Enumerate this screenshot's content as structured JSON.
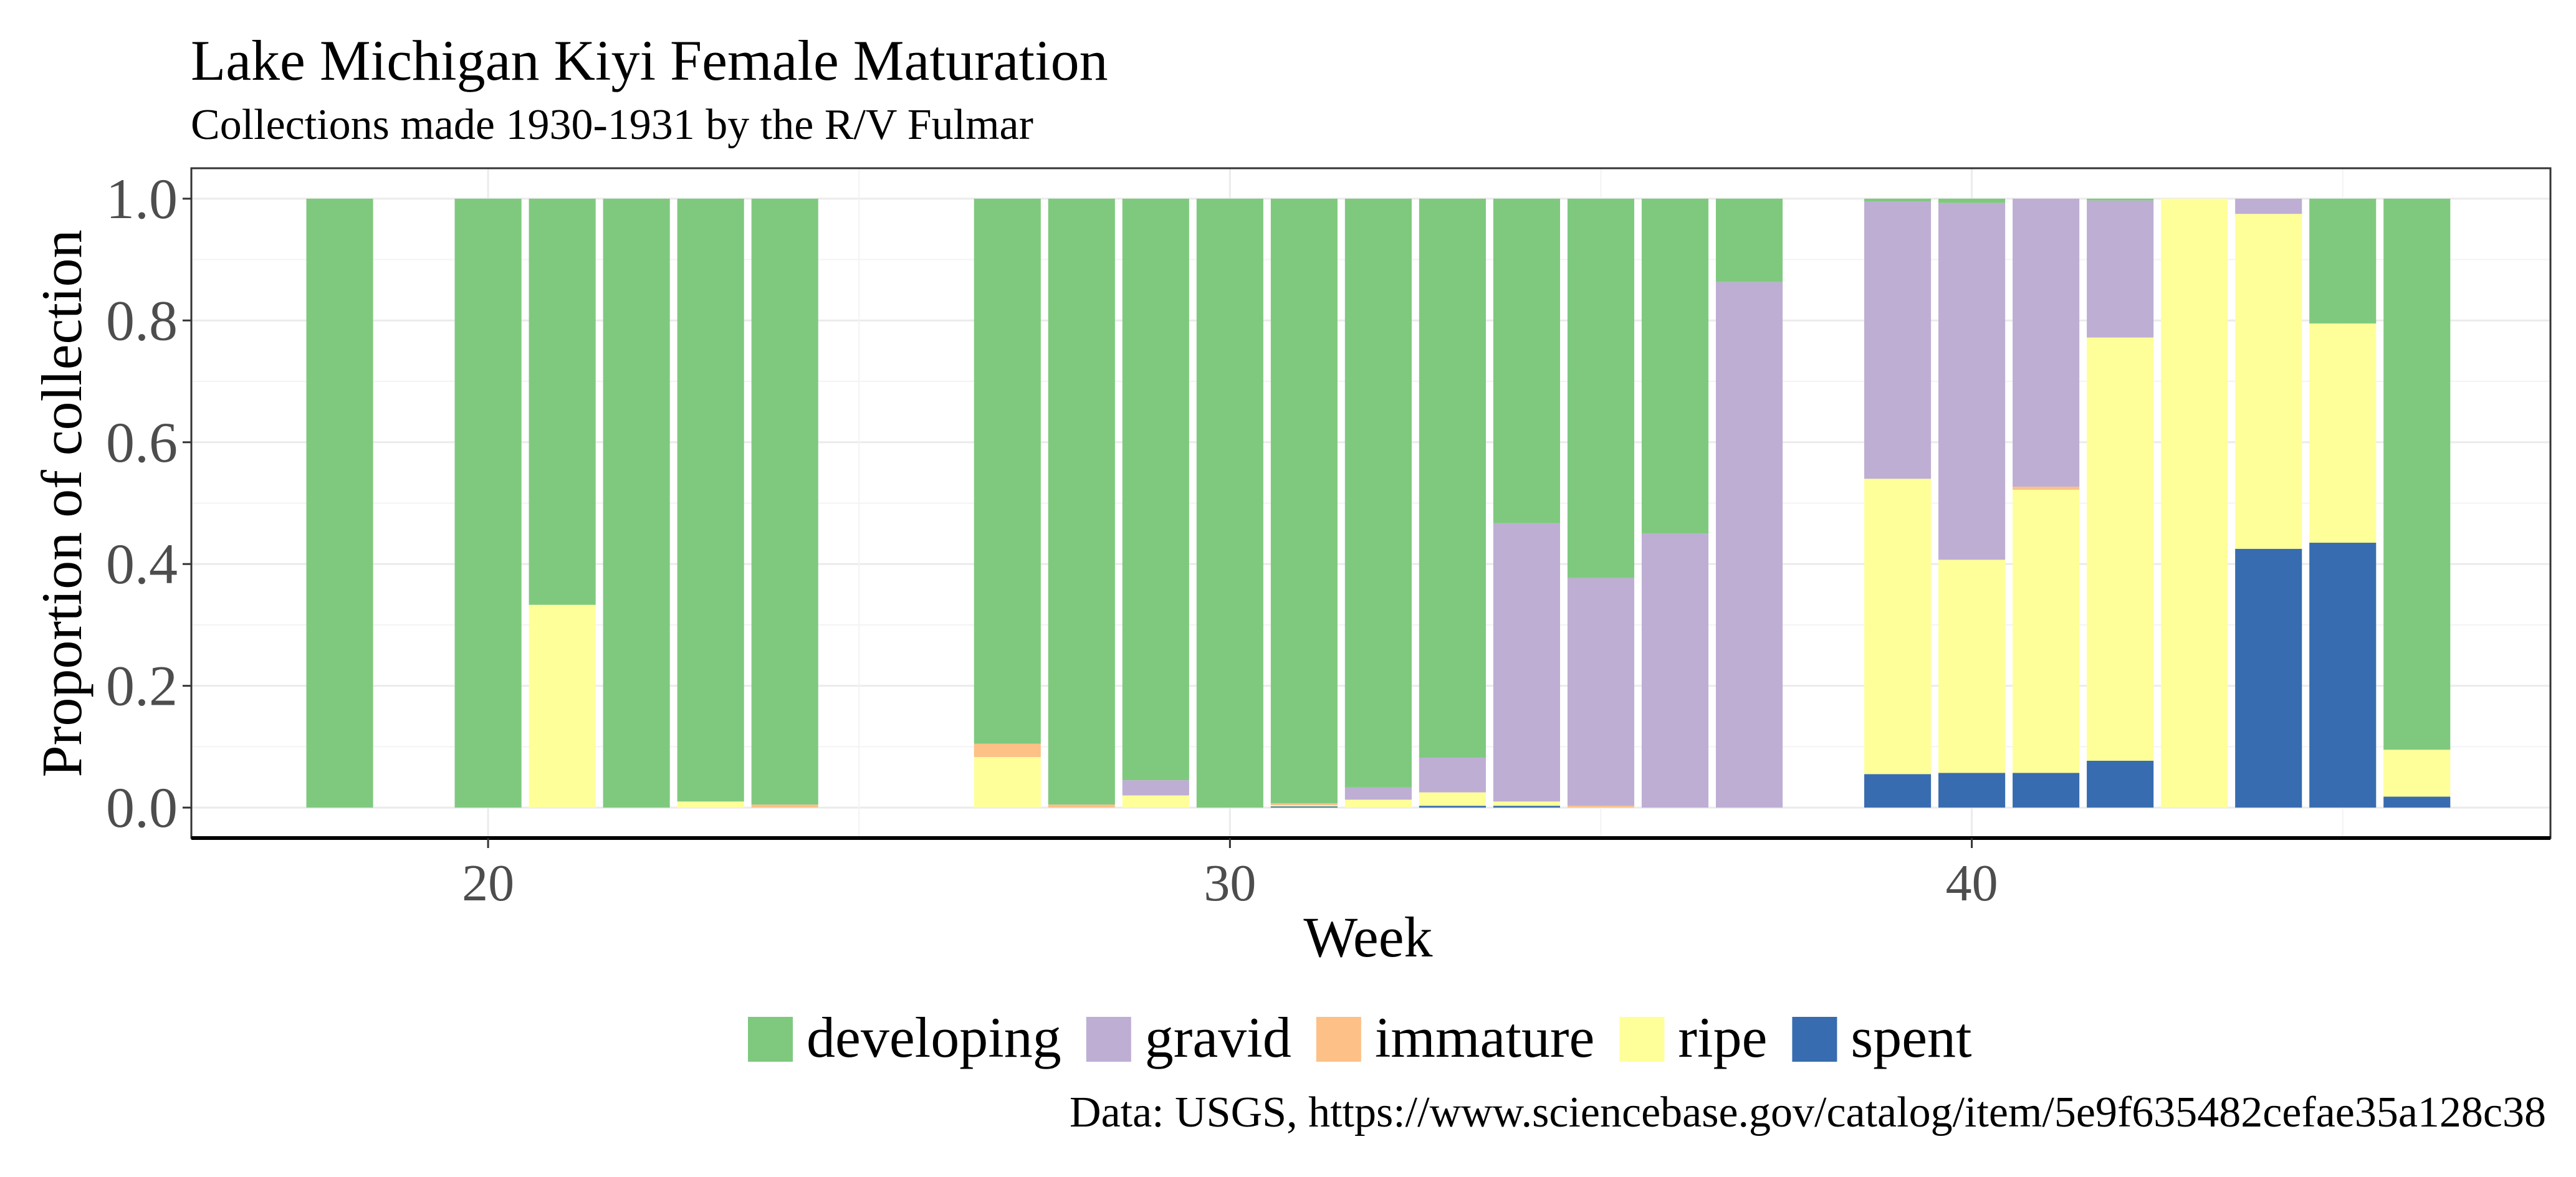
{
  "chart_data": {
    "type": "bar",
    "stacked": true,
    "title": "Lake Michigan Kiyi Female Maturation",
    "subtitle": "Collections made 1930-1931 by the R/V Fulmar",
    "xlabel": "Week",
    "ylabel": "Proportion of collection",
    "caption": "Data: USGS, https://www.sciencebase.gov/catalog/item/5e9f635482cefae35a128c38",
    "xlim": [
      16,
      47.8
    ],
    "ylim": [
      -0.05,
      1.05
    ],
    "x_ticks": [
      20,
      30,
      40
    ],
    "y_ticks": [
      0.0,
      0.2,
      0.4,
      0.6,
      0.8,
      1.0
    ],
    "y_tick_labels": [
      "0.0",
      "0.2",
      "0.4",
      "0.6",
      "0.8",
      "1.0"
    ],
    "grid": true,
    "legend_position": "bottom",
    "stack_order_bottom_to_top": [
      "spent",
      "ripe",
      "immature",
      "gravid",
      "developing"
    ],
    "series": [
      {
        "name": "developing",
        "color": "#7FC97F"
      },
      {
        "name": "gravid",
        "color": "#BEAED4"
      },
      {
        "name": "immature",
        "color": "#FDC086"
      },
      {
        "name": "ripe",
        "color": "#FFFF99"
      },
      {
        "name": "spent",
        "color": "#386CB0"
      }
    ],
    "legend_order": [
      "developing",
      "gravid",
      "immature",
      "ripe",
      "spent"
    ],
    "bars": [
      {
        "week": 18,
        "developing": 1.0,
        "gravid": 0,
        "immature": 0,
        "ripe": 0,
        "spent": 0
      },
      {
        "week": 20,
        "developing": 1.0,
        "gravid": 0,
        "immature": 0,
        "ripe": 0,
        "spent": 0
      },
      {
        "week": 21,
        "developing": 0.667,
        "gravid": 0,
        "immature": 0,
        "ripe": 0.333,
        "spent": 0
      },
      {
        "week": 22,
        "developing": 1.0,
        "gravid": 0,
        "immature": 0,
        "ripe": 0,
        "spent": 0
      },
      {
        "week": 23,
        "developing": 0.99,
        "gravid": 0,
        "immature": 0,
        "ripe": 0.01,
        "spent": 0
      },
      {
        "week": 24,
        "developing": 0.995,
        "gravid": 0,
        "immature": 0.005,
        "ripe": 0,
        "spent": 0
      },
      {
        "week": 27,
        "developing": 0.895,
        "gravid": 0,
        "immature": 0.022,
        "ripe": 0.083,
        "spent": 0
      },
      {
        "week": 28,
        "developing": 0.995,
        "gravid": 0,
        "immature": 0.005,
        "ripe": 0,
        "spent": 0
      },
      {
        "week": 29,
        "developing": 0.955,
        "gravid": 0.025,
        "immature": 0,
        "ripe": 0.02,
        "spent": 0
      },
      {
        "week": 30,
        "developing": 1.0,
        "gravid": 0,
        "immature": 0,
        "ripe": 0,
        "spent": 0
      },
      {
        "week": 31,
        "developing": 0.993,
        "gravid": 0,
        "immature": 0.003,
        "ripe": 0.002,
        "spent": 0.002
      },
      {
        "week": 32,
        "developing": 0.967,
        "gravid": 0.02,
        "immature": 0,
        "ripe": 0.013,
        "spent": 0
      },
      {
        "week": 33,
        "developing": 0.918,
        "gravid": 0.057,
        "immature": 0,
        "ripe": 0.022,
        "spent": 0.003
      },
      {
        "week": 34,
        "developing": 0.533,
        "gravid": 0.457,
        "immature": 0,
        "ripe": 0.007,
        "spent": 0.003
      },
      {
        "week": 35,
        "developing": 0.623,
        "gravid": 0.374,
        "immature": 0.003,
        "ripe": 0,
        "spent": 0
      },
      {
        "week": 36,
        "developing": 0.55,
        "gravid": 0.45,
        "immature": 0,
        "ripe": 0,
        "spent": 0
      },
      {
        "week": 37,
        "developing": 0.137,
        "gravid": 0.863,
        "immature": 0,
        "ripe": 0,
        "spent": 0
      },
      {
        "week": 39,
        "developing": 0.005,
        "gravid": 0.455,
        "immature": 0,
        "ripe": 0.485,
        "spent": 0.055
      },
      {
        "week": 40,
        "developing": 0.007,
        "gravid": 0.586,
        "immature": 0,
        "ripe": 0.35,
        "spent": 0.057
      },
      {
        "week": 41,
        "developing": 0,
        "gravid": 0.473,
        "immature": 0.005,
        "ripe": 0.465,
        "spent": 0.057
      },
      {
        "week": 42,
        "developing": 0.003,
        "gravid": 0.225,
        "immature": 0,
        "ripe": 0.695,
        "spent": 0.077
      },
      {
        "week": 43,
        "developing": 0,
        "gravid": 0,
        "immature": 0,
        "ripe": 1.0,
        "spent": 0
      },
      {
        "week": 44,
        "developing": 0,
        "gravid": 0.025,
        "immature": 0,
        "ripe": 0.55,
        "spent": 0.425
      },
      {
        "week": 45,
        "developing": 0.205,
        "gravid": 0,
        "immature": 0,
        "ripe": 0.36,
        "spent": 0.435
      },
      {
        "week": 46,
        "developing": 0.905,
        "gravid": 0,
        "immature": 0,
        "ripe": 0.077,
        "spent": 0.018
      }
    ]
  }
}
